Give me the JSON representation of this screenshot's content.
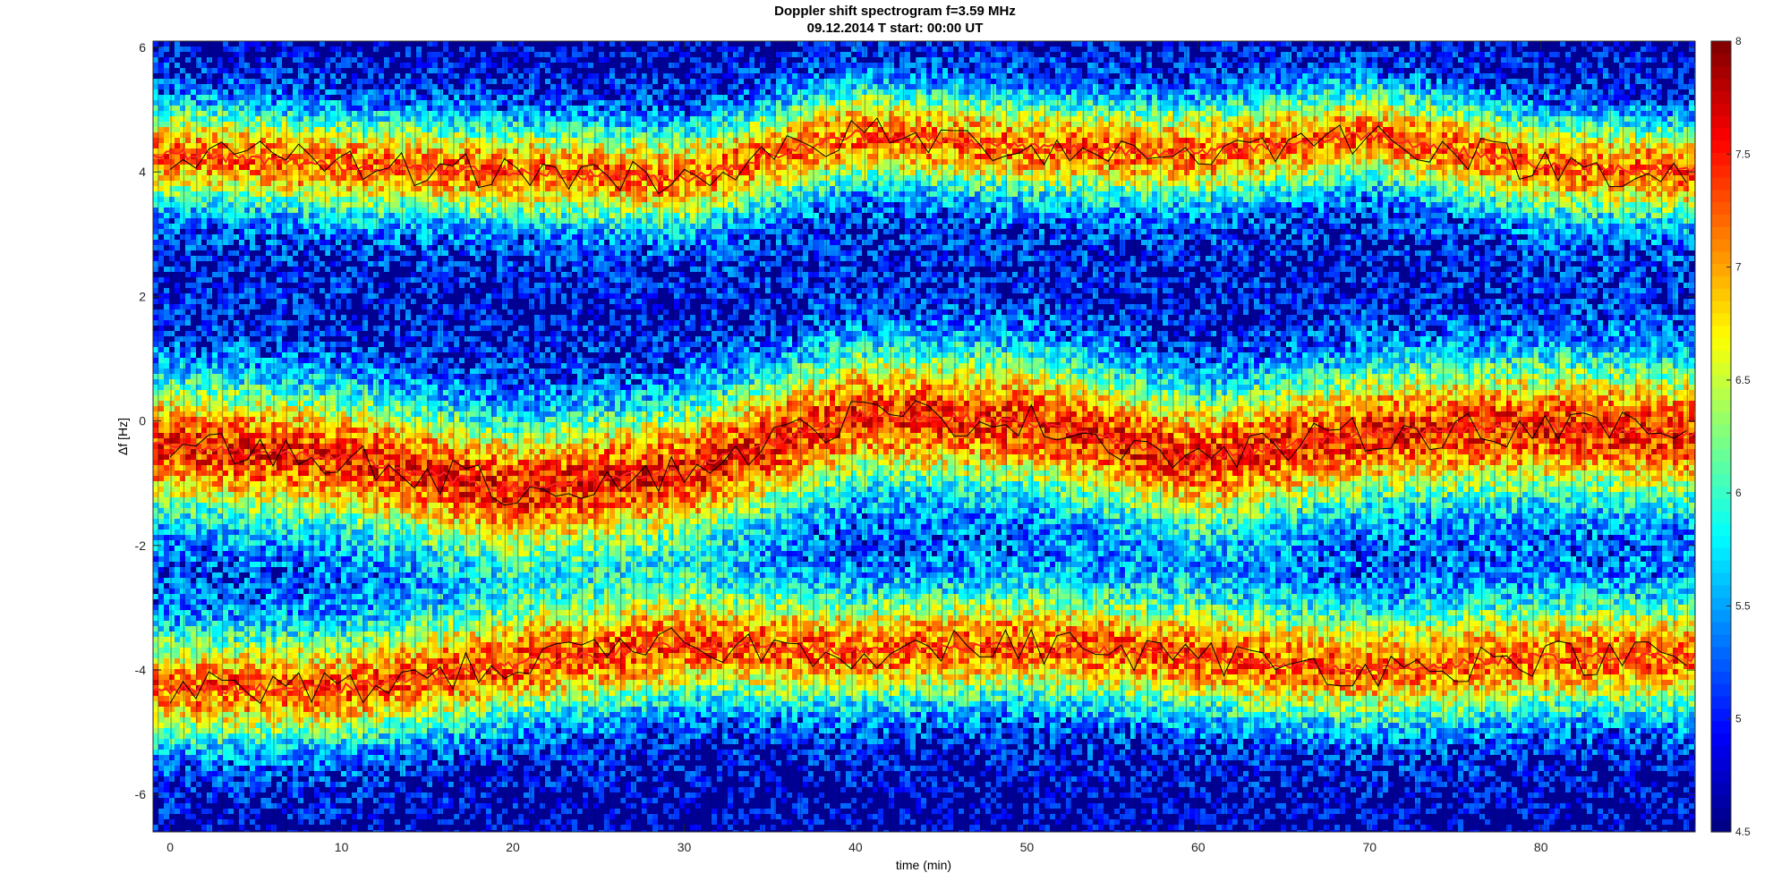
{
  "chart_data": {
    "type": "heatmap",
    "title": "Doppler shift spectrogram f=3.59 MHz",
    "subtitle": "09.12.2014    T start: 00:00 UT",
    "xlabel": "time (min)",
    "ylabel": "Δf [Hz]",
    "xlim": [
      -1,
      89
    ],
    "ylim": [
      -6.6,
      6.1
    ],
    "x_ticks": [
      "0",
      "10",
      "20",
      "30",
      "40",
      "50",
      "60",
      "70",
      "80"
    ],
    "y_ticks": [
      "-6",
      "-4",
      "-2",
      "0",
      "2",
      "4",
      "6"
    ],
    "colorbar": {
      "colormap": "jet",
      "range": [
        4.5,
        8
      ],
      "ticks": [
        "4.5",
        "5",
        "5.5",
        "6",
        "6.5",
        "7",
        "7.5",
        "8"
      ]
    },
    "bands": [
      {
        "name": "upper",
        "center_hz": [
          [
            0,
            4.3
          ],
          [
            10,
            4.1
          ],
          [
            20,
            4.0
          ],
          [
            30,
            3.9
          ],
          [
            40,
            4.6
          ],
          [
            50,
            4.4
          ],
          [
            60,
            4.3
          ],
          [
            70,
            4.6
          ],
          [
            80,
            4.1
          ],
          [
            89,
            4.0
          ]
        ]
      },
      {
        "name": "middle",
        "center_hz": [
          [
            0,
            -0.4
          ],
          [
            10,
            -0.6
          ],
          [
            20,
            -1.1
          ],
          [
            30,
            -0.8
          ],
          [
            40,
            0.1
          ],
          [
            50,
            0.0
          ],
          [
            60,
            -0.6
          ],
          [
            70,
            -0.2
          ],
          [
            80,
            -0.1
          ],
          [
            89,
            -0.2
          ]
        ]
      },
      {
        "name": "lower",
        "center_hz": [
          [
            0,
            -4.3
          ],
          [
            10,
            -4.3
          ],
          [
            20,
            -3.9
          ],
          [
            30,
            -3.6
          ],
          [
            40,
            -3.7
          ],
          [
            50,
            -3.6
          ],
          [
            60,
            -3.8
          ],
          [
            70,
            -4.0
          ],
          [
            80,
            -3.8
          ],
          [
            89,
            -3.8
          ]
        ]
      }
    ],
    "grid": false
  },
  "colors": {
    "text": "#000000",
    "background": "#ffffff",
    "trace_red": "#ff2020",
    "trace_black": "#000000"
  }
}
